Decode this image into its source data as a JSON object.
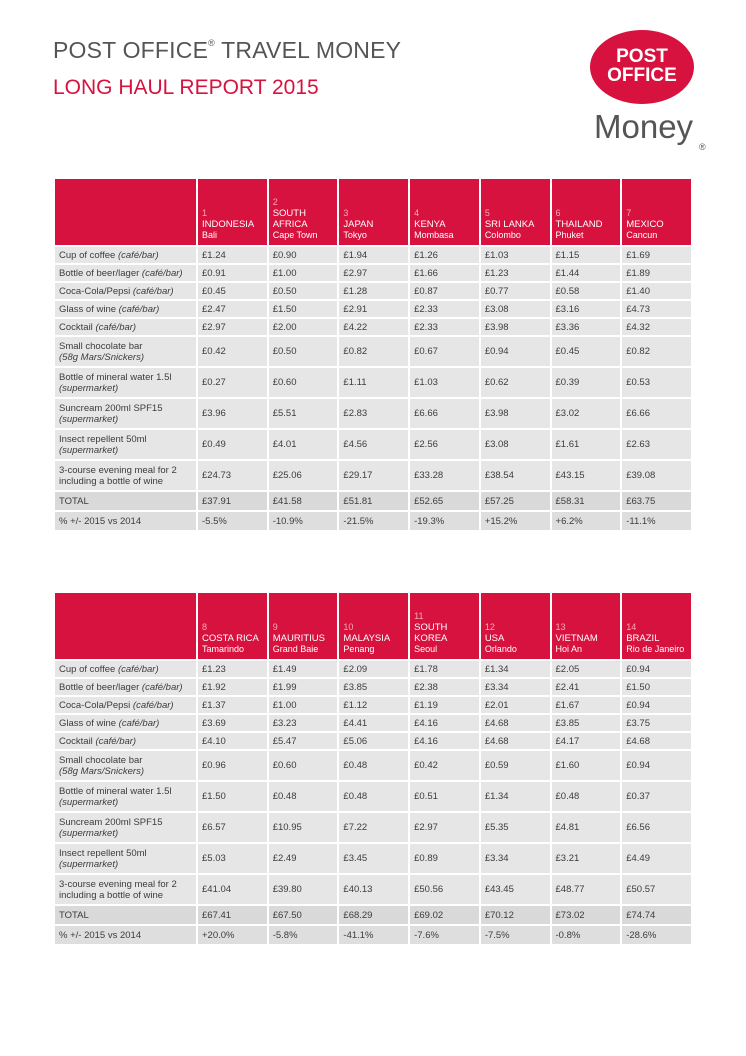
{
  "title_line1": "POST OFFICE",
  "title_reg": "®",
  "title_line1b": " TRAVEL MONEY",
  "title_line2": "LONG HAUL REPORT 2015",
  "logo": {
    "line1": "POST",
    "line2": "OFFICE",
    "money": "Money",
    "reg": "®"
  },
  "rows": [
    {
      "label": "Cup of coffee ",
      "note": "(café/bar)",
      "dbl": false
    },
    {
      "label": "Bottle of beer/lager ",
      "note": "(café/bar)",
      "dbl": false
    },
    {
      "label": "Coca-Cola/Pepsi ",
      "note": "(café/bar)",
      "dbl": false
    },
    {
      "label": "Glass of wine ",
      "note": "(café/bar)",
      "dbl": false
    },
    {
      "label": "Cocktail ",
      "note": "(café/bar)",
      "dbl": false
    },
    {
      "label": "Small chocolate bar",
      "note": "(58g Mars/Snickers)",
      "dbl": true
    },
    {
      "label": "Bottle of mineral water 1.5l",
      "note": "(supermarket)",
      "dbl": true
    },
    {
      "label": "Suncream 200ml SPF15",
      "note": "(supermarket)",
      "dbl": true
    },
    {
      "label": "Insect repellent 50ml",
      "note": "(supermarket)",
      "dbl": true
    },
    {
      "label": "3-course evening meal for 2 including a bottle of wine",
      "note": "",
      "dbl": true
    },
    {
      "label": "TOTAL",
      "note": "",
      "dbl": false
    },
    {
      "label": "% +/- 2015 vs 2014",
      "note": "",
      "dbl": false
    }
  ],
  "tables": [
    {
      "countries": [
        {
          "num": "1",
          "country": "INDONESIA",
          "city": "Bali",
          "values": [
            "£1.24",
            "£0.91",
            "£0.45",
            "£2.47",
            "£2.97",
            "£0.42",
            "£0.27",
            "£3.96",
            "£0.49",
            "£24.73",
            "£37.91",
            "-5.5%"
          ]
        },
        {
          "num": "2",
          "country": "SOUTH AFRICA",
          "city": "Cape Town",
          "values": [
            "£0.90",
            "£1.00",
            "£0.50",
            "£1.50",
            "£2.00",
            "£0.50",
            "£0.60",
            "£5.51",
            "£4.01",
            "£25.06",
            "£41.58",
            "-10.9%"
          ]
        },
        {
          "num": "3",
          "country": "JAPAN",
          "city": "Tokyo",
          "values": [
            "£1.94",
            "£2.97",
            "£1.28",
            "£2.91",
            "£4.22",
            "£0.82",
            "£1.11",
            "£2.83",
            "£4.56",
            "£29.17",
            "£51.81",
            "-21.5%"
          ]
        },
        {
          "num": "4",
          "country": "KENYA",
          "city": "Mombasa",
          "values": [
            "£1.26",
            "£1.66",
            "£0.87",
            "£2.33",
            "£2.33",
            "£0.67",
            "£1.03",
            "£6.66",
            "£2.56",
            "£33.28",
            "£52.65",
            "-19.3%"
          ]
        },
        {
          "num": "5",
          "country": "SRI LANKA",
          "city": "Colombo",
          "values": [
            "£1.03",
            "£1.23",
            "£0.77",
            "£3.08",
            "£3.98",
            "£0.94",
            "£0.62",
            "£3.98",
            "£3.08",
            "£38.54",
            "£57.25",
            "+15.2%"
          ]
        },
        {
          "num": "6",
          "country": "THAILAND",
          "city": "Phuket",
          "values": [
            "£1.15",
            "£1.44",
            "£0.58",
            "£3.16",
            "£3.36",
            "£0.45",
            "£0.39",
            "£3.02",
            "£1.61",
            "£43.15",
            "£58.31",
            "+6.2%"
          ]
        },
        {
          "num": "7",
          "country": "MEXICO",
          "city": "Cancun",
          "values": [
            "£1.69",
            "£1.89",
            "£1.40",
            "£4.73",
            "£4.32",
            "£0.82",
            "£0.53",
            "£6.66",
            "£2.63",
            "£39.08",
            "£63.75",
            "-11.1%"
          ]
        }
      ]
    },
    {
      "countries": [
        {
          "num": "8",
          "country": "COSTA RICA",
          "city": "Tamarindo",
          "values": [
            "£1.23",
            "£1.92",
            "£1.37",
            "£3.69",
            "£4.10",
            "£0.96",
            "£1.50",
            "£6.57",
            "£5.03",
            "£41.04",
            "£67.41",
            "+20.0%"
          ]
        },
        {
          "num": "9",
          "country": "MAURITIUS",
          "city": "Grand Baie",
          "values": [
            "£1.49",
            "£1.99",
            "£1.00",
            "£3.23",
            "£5.47",
            "£0.60",
            "£0.48",
            "£10.95",
            "£2.49",
            "£39.80",
            "£67.50",
            "-5.8%"
          ]
        },
        {
          "num": "10",
          "country": "MALAYSIA",
          "city": "Penang",
          "values": [
            "£2.09",
            "£3.85",
            "£1.12",
            "£4.41",
            "£5.06",
            "£0.48",
            "£0.48",
            "£7.22",
            "£3.45",
            "£40.13",
            "£68.29",
            "-41.1%"
          ]
        },
        {
          "num": "11",
          "country": "SOUTH KOREA",
          "city": "Seoul",
          "values": [
            "£1.78",
            "£2.38",
            "£1.19",
            "£4.16",
            "£4.16",
            "£0.42",
            "£0.51",
            "£2.97",
            "£0.89",
            "£50.56",
            "£69.02",
            "-7.6%"
          ]
        },
        {
          "num": "12",
          "country": "USA",
          "city": "Orlando",
          "values": [
            "£1.34",
            "£3.34",
            "£2.01",
            "£4.68",
            "£4.68",
            "£0.59",
            "£1.34",
            "£5.35",
            "£3.34",
            "£43.45",
            "£70.12",
            "-7.5%"
          ]
        },
        {
          "num": "13",
          "country": "VIETNAM",
          "city": "Hoi An",
          "values": [
            "£2.05",
            "£2.41",
            "£1.67",
            "£3.85",
            "£4.17",
            "£1.60",
            "£0.48",
            "£4.81",
            "£3.21",
            "£48.77",
            "£73.02",
            "-0.8%"
          ]
        },
        {
          "num": "14",
          "country": "BRAZIL",
          "city": "Rio de Janeiro",
          "values": [
            "£0.94",
            "£1.50",
            "£0.94",
            "£3.75",
            "£4.68",
            "£0.94",
            "£0.37",
            "£6.56",
            "£4.49",
            "£50.57",
            "£74.74",
            "-28.6%"
          ]
        }
      ]
    }
  ]
}
